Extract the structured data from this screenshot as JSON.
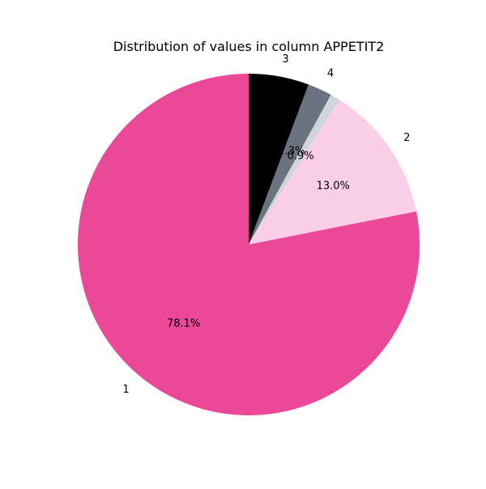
{
  "chart_data": {
    "type": "pie",
    "title": "Distribution of values in column APPETIT2",
    "start_angle_deg": 90,
    "direction": "clockwise",
    "slices": [
      {
        "label": "3",
        "value": 5.7,
        "pct_text": "5.7%",
        "color": "#000000"
      },
      {
        "label": "4",
        "value": 2.3,
        "pct_text": "2.3%",
        "color": "#6b7280"
      },
      {
        "label": "",
        "value": 0.9,
        "pct_text": "0.9%",
        "color": "#d1d5db"
      },
      {
        "label": "2",
        "value": 13.0,
        "pct_text": "13.0%",
        "color": "#fbcfe8"
      },
      {
        "label": "1",
        "value": 78.1,
        "pct_text": "78.1%",
        "color": "#ec4899"
      }
    ]
  }
}
